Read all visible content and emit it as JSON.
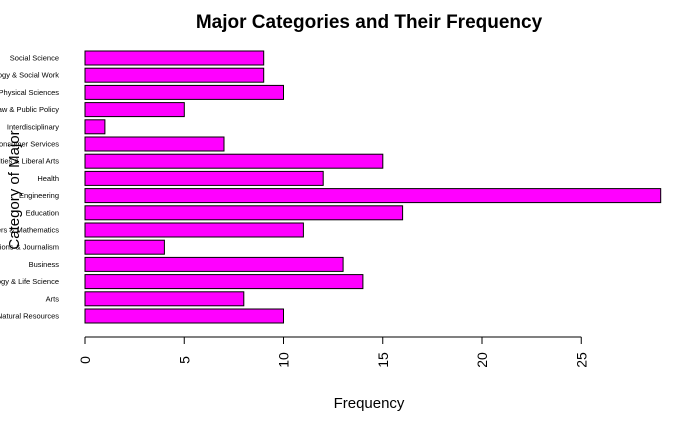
{
  "chart_data": {
    "type": "bar",
    "orientation": "horizontal",
    "title": "Major Categories and Their Frequency",
    "xlabel": "Frequency",
    "ylabel": "Category of Major",
    "xlim": [
      0,
      29
    ],
    "x_ticks": [
      0,
      5,
      10,
      15,
      20,
      25
    ],
    "bar_color": "#ff00ff",
    "categories": [
      "Agriculture & Natural Resources",
      "Arts",
      "Biology & Life Science",
      "Business",
      "Communications & Journalism",
      "Computers & Mathematics",
      "Education",
      "Engineering",
      "Health",
      "Humanities & Liberal Arts",
      "Industrial Arts & Consumer Services",
      "Interdisciplinary",
      "Law & Public Policy",
      "Physical Sciences",
      "Psychology & Social Work",
      "Social Science"
    ],
    "values": [
      10,
      8,
      14,
      13,
      4,
      11,
      16,
      29,
      12,
      15,
      7,
      1,
      5,
      10,
      9,
      9
    ]
  }
}
